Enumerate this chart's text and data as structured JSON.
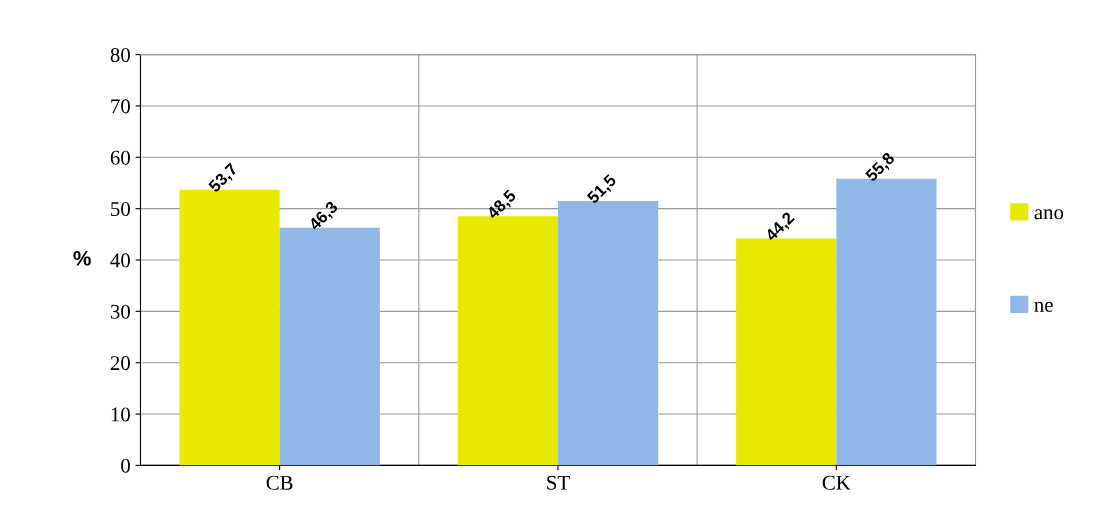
{
  "chart_data": {
    "type": "bar",
    "ylabel": "%",
    "categories": [
      "CB",
      "ST",
      "CK"
    ],
    "series": [
      {
        "name": "ano",
        "color": "#e8e800",
        "values": [
          53.7,
          48.5,
          44.2
        ],
        "value_labels": [
          "53,7",
          "48,5",
          "44,2"
        ]
      },
      {
        "name": "ne",
        "color": "#8fb8e8",
        "values": [
          46.3,
          51.5,
          55.8
        ],
        "value_labels": [
          "46,3",
          "51,5",
          "55,8"
        ]
      }
    ],
    "ylim": [
      0,
      80
    ],
    "yticks": [
      0,
      10,
      20,
      30,
      40,
      50,
      60,
      70,
      80
    ],
    "grid": true,
    "legend": "right"
  }
}
